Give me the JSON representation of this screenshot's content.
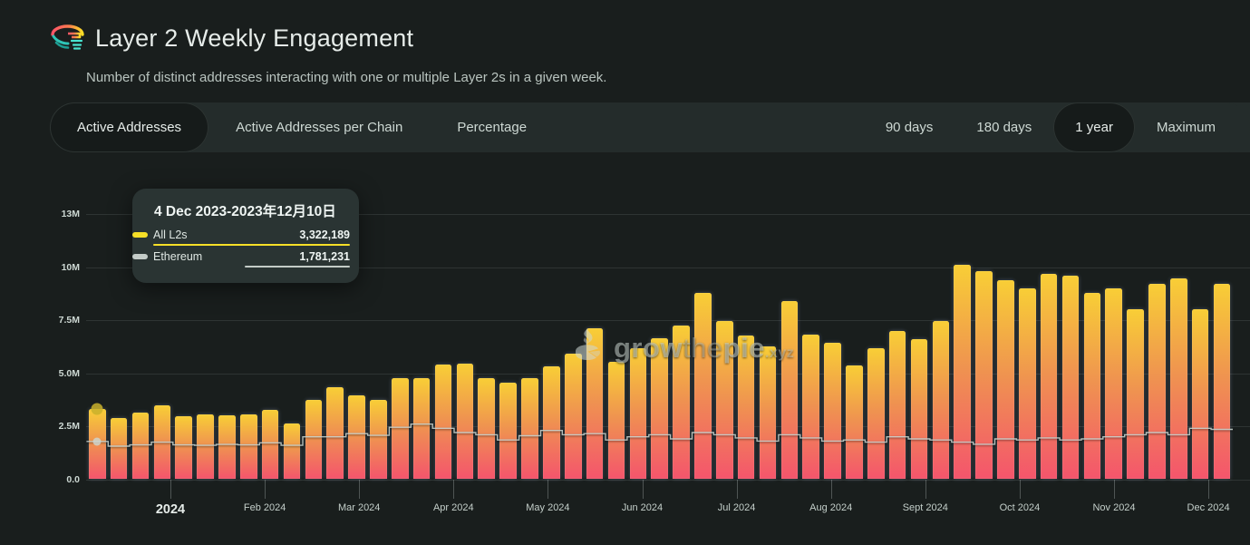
{
  "header": {
    "title": "Layer 2 Weekly Engagement",
    "subtitle": "Number of distinct addresses interacting with one or multiple Layer 2s in a given week."
  },
  "metric_tabs": [
    {
      "label": "Active Addresses",
      "selected": true
    },
    {
      "label": "Active Addresses per Chain",
      "selected": false
    },
    {
      "label": "Percentage",
      "selected": false
    }
  ],
  "timespan_tabs": [
    {
      "label": "90 days",
      "selected": false
    },
    {
      "label": "180 days",
      "selected": false
    },
    {
      "label": "1 year",
      "selected": true
    },
    {
      "label": "Maximum",
      "selected": false
    }
  ],
  "tooltip": {
    "title": "4 Dec 2023-2023年12月10日",
    "rows": [
      {
        "name": "All L2s",
        "value": "3,322,189",
        "color": "#f6df27"
      },
      {
        "name": "Ethereum",
        "value": "1,781,231",
        "color": "#c3cbc7"
      }
    ]
  },
  "watermark": {
    "grow": "grow",
    "the": "the",
    "pie": "pie",
    "xyz": ".xyz"
  },
  "colors": {
    "background": "#191e1d",
    "panel": "#242c2b",
    "selected_pill": "#161b1a",
    "text": "#cdd8d3",
    "all_l2s_yellow": "#f6df27",
    "ethereum_gray": "#c3cbc7",
    "bar_gradient_top": "#f8ce36",
    "bar_gradient_bottom": "#f4556c",
    "tooltip_bg": "#2a3433"
  },
  "chart_data": {
    "type": "bar",
    "title": "Layer 2 Weekly Engagement",
    "frequency": "weekly",
    "x_start": "4 Dec 2023",
    "x_end": "2 Dec 2024",
    "unit": "distinct addresses (millions)",
    "ylim": [
      0,
      13
    ],
    "y_ticks": [
      "13M",
      "10M",
      "7.5M",
      "5.0M",
      "2.5M",
      "0.0"
    ],
    "x_ticks": [
      "2024",
      "Feb 2024",
      "Mar 2024",
      "Apr 2024",
      "May 2024",
      "Jun 2024",
      "Jul 2024",
      "Aug 2024",
      "Sept 2024",
      "Oct 2024",
      "Nov 2024",
      "Dec 2024"
    ],
    "legend_position": "tooltip-only",
    "grid": true,
    "series": [
      {
        "name": "All L2s",
        "style": "column-gradient",
        "values_millions": [
          3.322189,
          2.9,
          3.16,
          3.5,
          2.95,
          3.04,
          3.0,
          3.04,
          3.26,
          2.64,
          3.72,
          4.33,
          3.95,
          3.72,
          4.78,
          4.75,
          5.39,
          5.44,
          4.78,
          4.57,
          4.77,
          5.33,
          5.92,
          7.1,
          5.53,
          6.19,
          6.65,
          7.23,
          8.8,
          7.46,
          6.76,
          6.26,
          8.39,
          6.8,
          6.42,
          5.38,
          6.16,
          7.0,
          6.6,
          7.46,
          10.1,
          9.8,
          9.4,
          9.0,
          9.7,
          9.6,
          8.8,
          9.0,
          8.0,
          9.2,
          9.45,
          8.0,
          9.2
        ]
      },
      {
        "name": "Ethereum",
        "style": "step-line",
        "values_millions": [
          1.781231,
          1.56,
          1.62,
          1.75,
          1.62,
          1.6,
          1.64,
          1.62,
          1.72,
          1.6,
          2.0,
          2.0,
          2.15,
          2.07,
          2.45,
          2.6,
          2.4,
          2.2,
          2.1,
          1.85,
          2.05,
          2.3,
          2.1,
          2.15,
          1.85,
          2.0,
          2.1,
          1.9,
          2.2,
          2.1,
          1.95,
          1.8,
          2.1,
          1.95,
          1.8,
          1.85,
          1.75,
          2.0,
          1.9,
          1.85,
          1.75,
          1.65,
          1.9,
          1.85,
          1.95,
          1.85,
          1.9,
          2.0,
          2.1,
          2.2,
          2.1,
          2.4,
          2.35
        ]
      }
    ],
    "hovered_point": {
      "week": "4 Dec 2023",
      "all_l2s": 3322189,
      "ethereum": 1781231
    }
  }
}
